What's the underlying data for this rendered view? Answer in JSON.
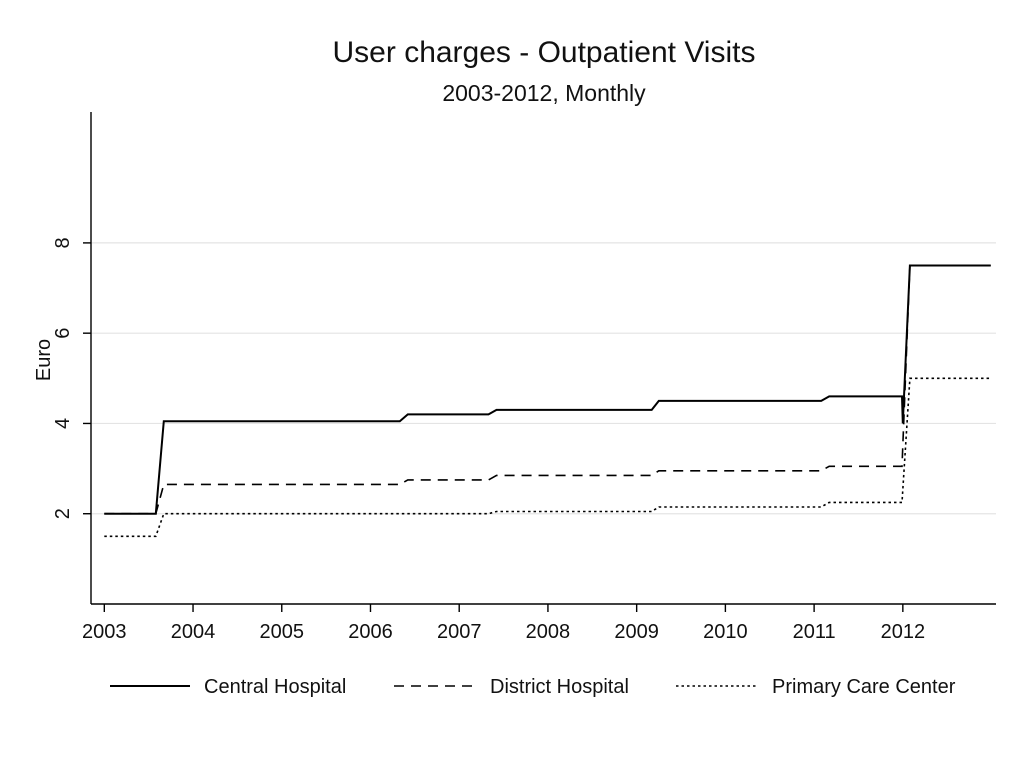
{
  "chart_data": {
    "type": "line",
    "title": "User charges - Outpatient Visits",
    "subtitle": "2003-2012, Monthly",
    "xlabel": "",
    "ylabel": "Euro",
    "xlim": [
      2002.85,
      2013.05
    ],
    "ylim": [
      0,
      10.9
    ],
    "yticks": [
      2,
      4,
      6,
      8
    ],
    "xticks": [
      2003,
      2004,
      2005,
      2006,
      2007,
      2008,
      2009,
      2010,
      2011,
      2012
    ],
    "xtick_labels": [
      "2003",
      "2004",
      "2005",
      "2006",
      "2007",
      "2008",
      "2009",
      "2010",
      "2011",
      "2012"
    ],
    "grid": true,
    "legend_position": "bottom",
    "series": [
      {
        "name": "Central Hospital",
        "dash": "solid",
        "color": "#000000",
        "points": [
          [
            2003.0,
            2.0
          ],
          [
            2003.58,
            2.0
          ],
          [
            2003.67,
            4.05
          ],
          [
            2006.33,
            4.05
          ],
          [
            2006.42,
            4.2
          ],
          [
            2007.33,
            4.2
          ],
          [
            2007.42,
            4.3
          ],
          [
            2009.17,
            4.3
          ],
          [
            2009.25,
            4.5
          ],
          [
            2011.08,
            4.5
          ],
          [
            2011.17,
            4.6
          ],
          [
            2011.99,
            4.6
          ],
          [
            2012.0,
            4.0
          ],
          [
            2012.08,
            7.5
          ],
          [
            2012.99,
            7.5
          ]
        ]
      },
      {
        "name": "District Hospital",
        "dash": "dashed",
        "color": "#000000",
        "points": [
          [
            2003.0,
            2.0
          ],
          [
            2003.58,
            2.0
          ],
          [
            2003.67,
            2.65
          ],
          [
            2006.33,
            2.65
          ],
          [
            2006.42,
            2.75
          ],
          [
            2007.33,
            2.75
          ],
          [
            2007.42,
            2.85
          ],
          [
            2009.17,
            2.85
          ],
          [
            2009.25,
            2.95
          ],
          [
            2011.08,
            2.95
          ],
          [
            2011.17,
            3.05
          ],
          [
            2011.99,
            3.05
          ],
          [
            2012.08,
            7.5
          ],
          [
            2012.99,
            7.5
          ]
        ]
      },
      {
        "name": "Primary Care Center",
        "dash": "dotted",
        "color": "#000000",
        "points": [
          [
            2003.0,
            1.5
          ],
          [
            2003.58,
            1.5
          ],
          [
            2003.67,
            2.0
          ],
          [
            2007.33,
            2.0
          ],
          [
            2007.42,
            2.05
          ],
          [
            2009.17,
            2.05
          ],
          [
            2009.25,
            2.15
          ],
          [
            2011.08,
            2.15
          ],
          [
            2011.17,
            2.25
          ],
          [
            2011.99,
            2.25
          ],
          [
            2012.08,
            5.0
          ],
          [
            2012.99,
            5.0
          ]
        ]
      }
    ]
  }
}
